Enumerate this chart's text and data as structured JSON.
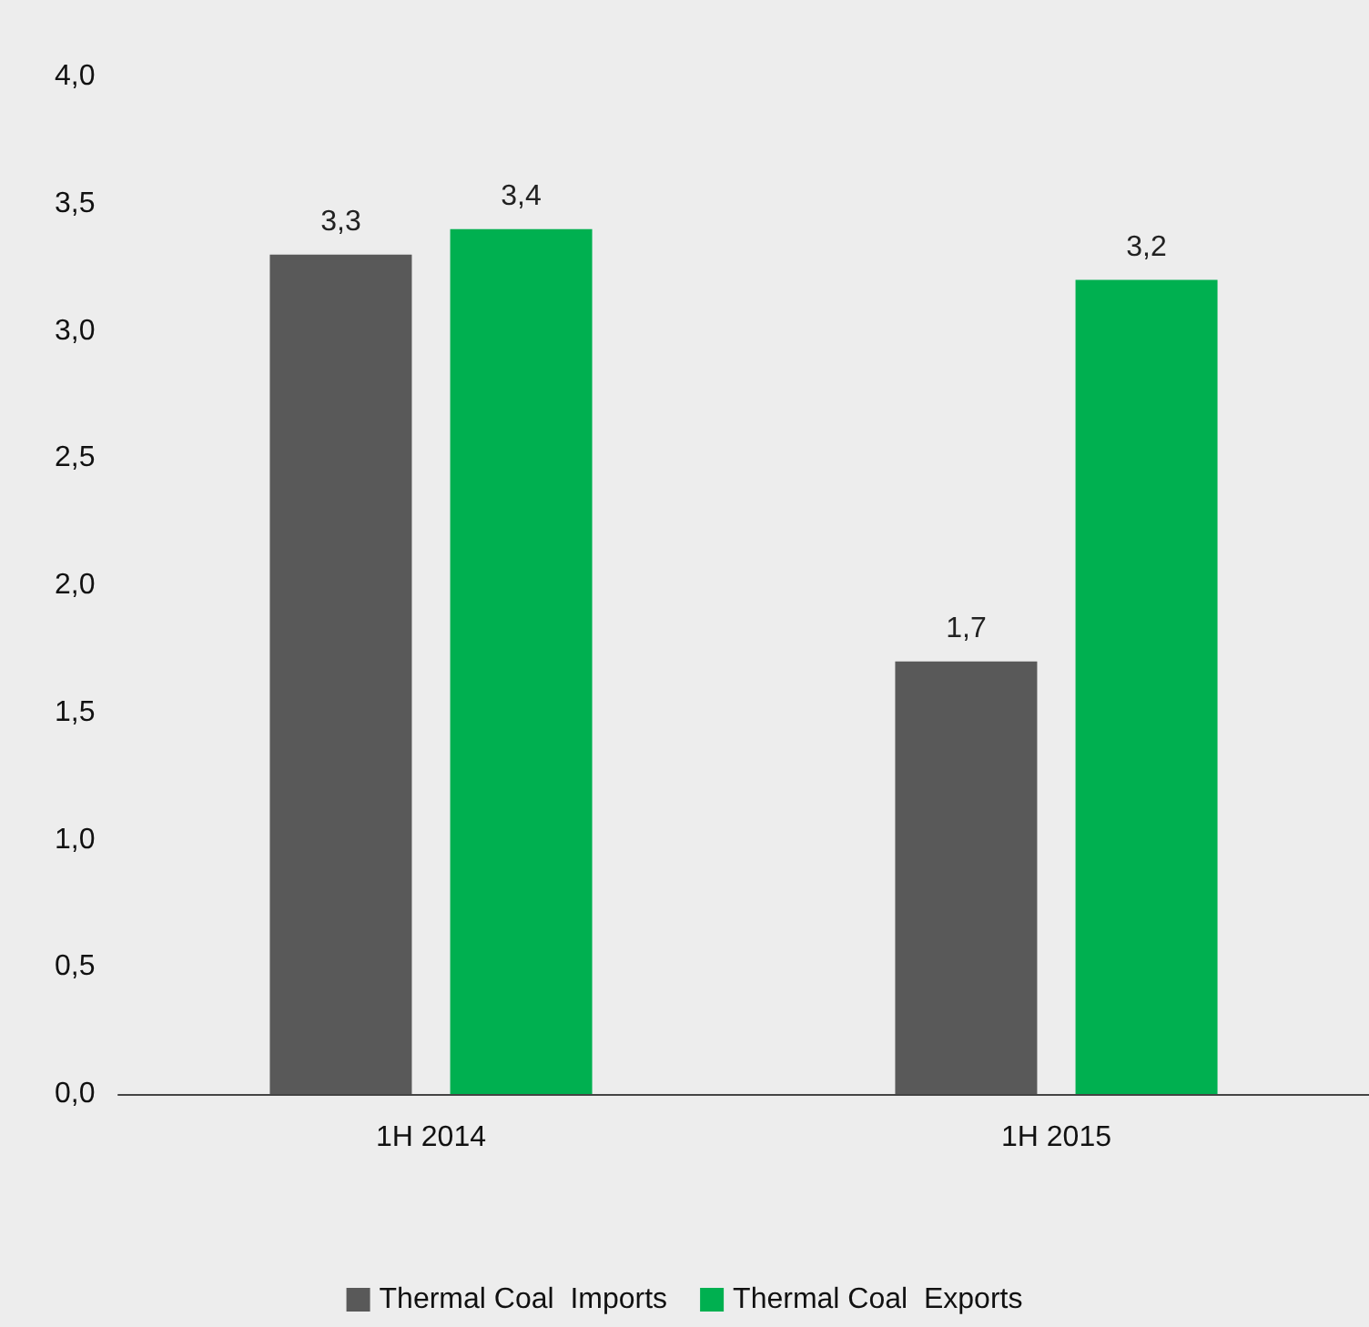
{
  "chart_data": {
    "type": "bar",
    "categories": [
      "1H 2014",
      "1H 2015"
    ],
    "series": [
      {
        "name": "Thermal Coal  Imports",
        "color": "#595959",
        "values": [
          3.3,
          1.7
        ],
        "value_labels": [
          "3,3",
          "1,7"
        ]
      },
      {
        "name": "Thermal Coal  Exports",
        "color": "#00b050",
        "values": [
          3.4,
          3.2
        ],
        "value_labels": [
          "3,4",
          "3,2"
        ]
      }
    ],
    "ylim": [
      0,
      4
    ],
    "yticks": [
      {
        "value": 0,
        "label": "0,0"
      },
      {
        "value": 0.5,
        "label": "0,5"
      },
      {
        "value": 1,
        "label": "1,0"
      },
      {
        "value": 1.5,
        "label": "1,5"
      },
      {
        "value": 2,
        "label": "2,0"
      },
      {
        "value": 2.5,
        "label": "2,5"
      },
      {
        "value": 3,
        "label": "3,0"
      },
      {
        "value": 3.5,
        "label": "3,5"
      },
      {
        "value": 4,
        "label": "4,0"
      }
    ],
    "grid": false,
    "legend": "bottom"
  }
}
